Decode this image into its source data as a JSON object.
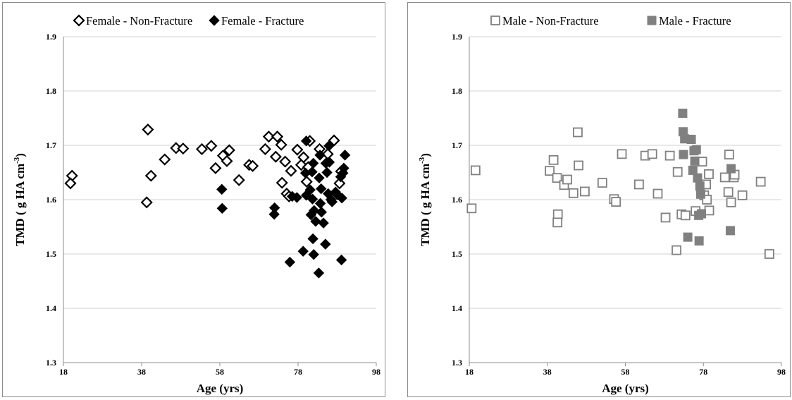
{
  "chart_data": [
    {
      "type": "scatter",
      "xlabel": "Age (yrs)",
      "ylabel": "TMD ( g  HA cm",
      "ylabel_sup": "-3",
      "ylabel_close": ")",
      "xlim": [
        18,
        98
      ],
      "ylim": [
        1.3,
        1.9
      ],
      "xticks": [
        "18",
        "38",
        "58",
        "78",
        "98"
      ],
      "yticks": [
        "1.3",
        "1.4",
        "1.5",
        "1.6",
        "1.7",
        "1.8",
        "1.9"
      ],
      "grid": "horizontal",
      "legend_position": "top",
      "series": [
        {
          "name": "Female - Non-Fracture",
          "marker": "diamond-open",
          "color": "#000000",
          "points": [
            [
              20.2,
              1.644
            ],
            [
              19.8,
              1.63
            ],
            [
              39.6,
              1.729
            ],
            [
              40.4,
              1.644
            ],
            [
              39.3,
              1.595
            ],
            [
              43.9,
              1.674
            ],
            [
              46.8,
              1.695
            ],
            [
              48.6,
              1.694
            ],
            [
              53.4,
              1.693
            ],
            [
              55.8,
              1.699
            ],
            [
              56.9,
              1.658
            ],
            [
              58.8,
              1.681
            ],
            [
              59.8,
              1.671
            ],
            [
              60.4,
              1.691
            ],
            [
              62.9,
              1.636
            ],
            [
              65.5,
              1.664
            ],
            [
              66.4,
              1.662
            ],
            [
              69.6,
              1.693
            ],
            [
              70.5,
              1.716
            ],
            [
              72.7,
              1.716
            ],
            [
              72.3,
              1.679
            ],
            [
              73.7,
              1.701
            ],
            [
              73.9,
              1.631
            ],
            [
              74.7,
              1.67
            ],
            [
              75.1,
              1.611
            ],
            [
              76.2,
              1.653
            ],
            [
              75.7,
              1.606
            ],
            [
              77.8,
              1.692
            ],
            [
              78.8,
              1.664
            ],
            [
              79.4,
              1.678
            ],
            [
              80.2,
              1.633
            ],
            [
              81.0,
              1.708
            ],
            [
              80.6,
              1.66
            ],
            [
              83.5,
              1.693
            ],
            [
              85.6,
              1.684
            ],
            [
              87.2,
              1.709
            ],
            [
              88.6,
              1.63
            ],
            [
              89.0,
              1.652
            ]
          ]
        },
        {
          "name": "Female - Fracture",
          "marker": "diamond-filled",
          "color": "#000000",
          "points": [
            [
              58.5,
              1.619
            ],
            [
              58.6,
              1.584
            ],
            [
              72.0,
              1.585
            ],
            [
              71.9,
              1.573
            ],
            [
              75.9,
              1.485
            ],
            [
              76.5,
              1.606
            ],
            [
              77.7,
              1.604
            ],
            [
              79.3,
              1.505
            ],
            [
              80.1,
              1.708
            ],
            [
              79.9,
              1.649
            ],
            [
              80.1,
              1.608
            ],
            [
              81.1,
              1.618
            ],
            [
              81.6,
              1.651
            ],
            [
              81.9,
              1.667
            ],
            [
              81.7,
              1.601
            ],
            [
              82.1,
              1.58
            ],
            [
              81.3,
              1.572
            ],
            [
              82.5,
              1.56
            ],
            [
              81.8,
              1.528
            ],
            [
              82.0,
              1.499
            ],
            [
              83.3,
              1.465
            ],
            [
              83.6,
              1.682
            ],
            [
              83.4,
              1.64
            ],
            [
              83.9,
              1.62
            ],
            [
              83.7,
              1.593
            ],
            [
              84.0,
              1.577
            ],
            [
              84.5,
              1.557
            ],
            [
              85.1,
              1.667
            ],
            [
              85.4,
              1.65
            ],
            [
              85.0,
              1.518
            ],
            [
              85.9,
              1.699
            ],
            [
              86.0,
              1.669
            ],
            [
              85.7,
              1.611
            ],
            [
              86.4,
              1.6
            ],
            [
              86.7,
              1.596
            ],
            [
              87.6,
              1.614
            ],
            [
              88.0,
              1.609
            ],
            [
              88.9,
              1.642
            ],
            [
              89.2,
              1.603
            ],
            [
              89.1,
              1.489
            ],
            [
              90.0,
              1.682
            ],
            [
              89.7,
              1.658
            ],
            [
              89.5,
              1.649
            ]
          ]
        }
      ]
    },
    {
      "type": "scatter",
      "xlabel": "Age (yrs)",
      "ylabel": "TMD ( g HA cm",
      "ylabel_sup": "-3",
      "ylabel_close": ")",
      "xlim": [
        18,
        98
      ],
      "ylim": [
        1.3,
        1.9
      ],
      "xticks": [
        "18",
        "38",
        "58",
        "78",
        "98"
      ],
      "yticks": [
        "1.3",
        "1.4",
        "1.5",
        "1.6",
        "1.7",
        "1.8",
        "1.9"
      ],
      "grid": "horizontal",
      "legend_position": "top",
      "series": [
        {
          "name": "Male - Non-Fracture",
          "marker": "square-open",
          "color": "#808080",
          "points": [
            [
              18.6,
              1.584
            ],
            [
              19.6,
              1.654
            ],
            [
              38.6,
              1.653
            ],
            [
              39.6,
              1.673
            ],
            [
              40.5,
              1.64
            ],
            [
              40.7,
              1.573
            ],
            [
              40.6,
              1.558
            ],
            [
              42.3,
              1.627
            ],
            [
              43.1,
              1.637
            ],
            [
              44.7,
              1.612
            ],
            [
              45.8,
              1.724
            ],
            [
              46.0,
              1.663
            ],
            [
              47.6,
              1.615
            ],
            [
              52.1,
              1.631
            ],
            [
              55.1,
              1.601
            ],
            [
              55.6,
              1.596
            ],
            [
              57.1,
              1.684
            ],
            [
              61.5,
              1.628
            ],
            [
              63.1,
              1.681
            ],
            [
              64.9,
              1.684
            ],
            [
              66.3,
              1.611
            ],
            [
              68.3,
              1.567
            ],
            [
              69.4,
              1.681
            ],
            [
              71.4,
              1.651
            ],
            [
              71.1,
              1.507
            ],
            [
              72.4,
              1.573
            ],
            [
              73.4,
              1.571
            ],
            [
              76.0,
              1.579
            ],
            [
              77.7,
              1.67
            ],
            [
              78.2,
              1.608
            ],
            [
              78.7,
              1.628
            ],
            [
              78.9,
              1.6
            ],
            [
              79.5,
              1.58
            ],
            [
              79.4,
              1.647
            ],
            [
              83.5,
              1.641
            ],
            [
              84.4,
              1.614
            ],
            [
              84.6,
              1.683
            ],
            [
              85.8,
              1.641
            ],
            [
              85.1,
              1.595
            ],
            [
              86.0,
              1.646
            ],
            [
              88.0,
              1.608
            ],
            [
              92.7,
              1.633
            ],
            [
              94.9,
              1.5
            ]
          ]
        },
        {
          "name": "Male - Fracture",
          "marker": "square-filled",
          "color": "#808080",
          "points": [
            [
              72.7,
              1.759
            ],
            [
              72.8,
              1.725
            ],
            [
              73.2,
              1.712
            ],
            [
              72.9,
              1.683
            ],
            [
              74.9,
              1.711
            ],
            [
              75.6,
              1.69
            ],
            [
              75.8,
              1.671
            ],
            [
              75.3,
              1.654
            ],
            [
              76.2,
              1.692
            ],
            [
              76.5,
              1.64
            ],
            [
              77.1,
              1.625
            ],
            [
              77.3,
              1.61
            ],
            [
              76.8,
              1.571
            ],
            [
              77.5,
              1.574
            ],
            [
              74.0,
              1.531
            ],
            [
              76.9,
              1.524
            ],
            [
              85.1,
              1.657
            ],
            [
              84.9,
              1.543
            ]
          ]
        }
      ]
    }
  ]
}
